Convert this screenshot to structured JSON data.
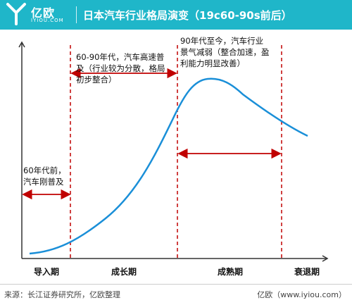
{
  "header": {
    "logo_text": "亿欧",
    "logo_sub": "IYIOU.COM",
    "title": "日本汽车行业格局演变（19c60-90s前后）"
  },
  "chart_data": {
    "type": "line",
    "title": "日本汽车行业格局演变（19c60-90s前后）",
    "xlabel": "",
    "ylabel": "",
    "phases": [
      "导入期",
      "成长期",
      "成熟期",
      "衰退期"
    ],
    "annotations": [
      "60年代前，汽车刚普及",
      "60-90年代，汽车高速普及（行业较为分散，格局初步整合）",
      "90年代至今，汽车行业景气减弱（整合加速，盈利能力明显改善）"
    ],
    "annotation_lines": [
      [
        "60年代前，",
        "汽车刚普及"
      ],
      [
        "60-90年代，汽车高速普",
        "及（行业较为分散，格局",
        "初步整合）"
      ],
      [
        "90年代至今，汽车行业",
        "景气减弱（整合加速，盈",
        "利能力明显改善）"
      ]
    ],
    "curve_shape": "lifecycle (slow rise, rapid growth, peak, decline)",
    "grid": false,
    "legend": "none"
  },
  "footer": {
    "source": "来源：长江证券研究所，亿欧整理",
    "site": "亿欧（www.iyiou.com）"
  },
  "colors": {
    "header_bg": "#1fb6c9",
    "curve": "#1a8fd8",
    "phase_line": "#c00000",
    "arrow": "#c00000",
    "axis": "#333333"
  }
}
